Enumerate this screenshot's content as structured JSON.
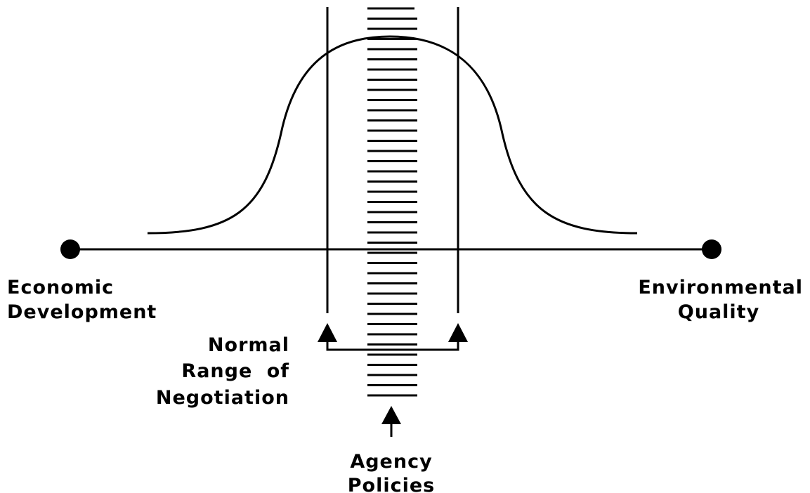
{
  "labels": {
    "left": [
      "Economic",
      "Development"
    ],
    "right": [
      "Environmental",
      "Quality"
    ],
    "range": [
      "Normal",
      "Range of",
      "Negotiation"
    ],
    "agency": [
      "Agency",
      "Policies"
    ]
  }
}
